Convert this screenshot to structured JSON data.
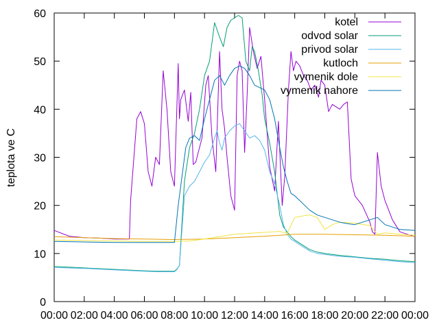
{
  "chart_data": {
    "type": "line",
    "title": "",
    "xlabel": "",
    "ylabel": "teplota ve C",
    "xlim": [
      "00:00",
      "24:00"
    ],
    "ylim": [
      0,
      60
    ],
    "yticks": [
      0,
      10,
      20,
      30,
      40,
      50,
      60
    ],
    "xtick_labels": [
      "00:00",
      "02:00",
      "04:00",
      "06:00",
      "08:00",
      "10:00",
      "12:00",
      "14:00",
      "16:00",
      "18:00",
      "20:00",
      "22:00",
      "00:00"
    ],
    "grid": false,
    "legend_position": "top-right",
    "series": [
      {
        "name": "kotel",
        "color": "#9400d3",
        "x": [
          "00:00",
          "01:00",
          "02:00",
          "03:00",
          "04:00",
          "05:00",
          "05:05",
          "05:30",
          "05:45",
          "06:00",
          "06:15",
          "06:30",
          "06:45",
          "07:00",
          "07:15",
          "07:30",
          "07:45",
          "08:00",
          "08:15",
          "08:20",
          "08:25",
          "08:40",
          "08:55",
          "09:05",
          "09:15",
          "09:25",
          "09:35",
          "09:50",
          "10:05",
          "10:15",
          "10:30",
          "10:45",
          "11:00",
          "11:10",
          "11:20",
          "11:30",
          "11:45",
          "12:00",
          "12:10",
          "12:20",
          "12:30",
          "12:40",
          "12:50",
          "13:00",
          "13:15",
          "13:30",
          "13:45",
          "14:00",
          "14:20",
          "14:40",
          "14:55",
          "15:10",
          "15:20",
          "15:35",
          "15:45",
          "15:55",
          "16:05",
          "16:20",
          "16:35",
          "16:50",
          "17:05",
          "17:20",
          "17:35",
          "17:45",
          "18:00",
          "18:15",
          "18:30",
          "18:45",
          "19:00",
          "19:15",
          "19:30",
          "19:45",
          "20:00",
          "20:30",
          "21:00",
          "21:10",
          "21:20",
          "21:30",
          "21:45",
          "22:00",
          "22:30",
          "23:00",
          "23:30",
          "24:00"
        ],
        "values": [
          14.8,
          13.6,
          13.3,
          13.2,
          13.0,
          13.0,
          21.0,
          38.0,
          39.5,
          37.0,
          27.0,
          24.0,
          30.0,
          28.5,
          48.0,
          40.0,
          27.0,
          24.0,
          49.5,
          38.0,
          42.0,
          44.0,
          37.5,
          43.5,
          28.5,
          29.0,
          31.0,
          34.0,
          45.0,
          47.0,
          34.0,
          27.0,
          52.0,
          40.0,
          36.0,
          30.0,
          22.0,
          19.0,
          47.0,
          50.0,
          48.0,
          31.0,
          43.0,
          57.0,
          52.0,
          48.5,
          51.0,
          42.0,
          28.0,
          23.0,
          37.5,
          20.0,
          26.0,
          44.0,
          52.0,
          48.0,
          50.0,
          49.0,
          47.0,
          46.0,
          44.0,
          45.0,
          42.5,
          46.0,
          45.0,
          39.5,
          41.0,
          40.5,
          40.0,
          41.0,
          41.5,
          25.5,
          22.0,
          20.0,
          16.5,
          14.5,
          14.0,
          31.0,
          24.0,
          21.0,
          17.0,
          14.5,
          14.0,
          13.5
        ]
      },
      {
        "name": "odvod solar",
        "color": "#009e73",
        "x": [
          "00:00",
          "02:00",
          "04:00",
          "06:00",
          "07:00",
          "08:00",
          "08:10",
          "08:20",
          "08:40",
          "09:00",
          "09:20",
          "09:40",
          "10:00",
          "10:20",
          "10:40",
          "11:00",
          "11:15",
          "11:30",
          "11:45",
          "12:00",
          "12:15",
          "12:30",
          "12:45",
          "13:00",
          "13:10",
          "13:20",
          "13:35",
          "13:50",
          "14:00",
          "14:20",
          "14:40",
          "15:00",
          "15:15",
          "15:30",
          "15:45",
          "16:00",
          "16:30",
          "17:00",
          "17:30",
          "18:00",
          "18:30",
          "19:00",
          "20:00",
          "21:00",
          "22:00",
          "23:00",
          "24:00"
        ],
        "values": [
          7.3,
          7.0,
          6.7,
          6.4,
          6.3,
          6.3,
          6.8,
          7.5,
          25.0,
          32.0,
          35.0,
          40.0,
          47.0,
          50.0,
          58.0,
          55.0,
          53.0,
          57.0,
          58.5,
          59.0,
          59.5,
          59.0,
          50.0,
          48.0,
          53.0,
          52.0,
          48.0,
          43.0,
          38.0,
          33.0,
          27.0,
          18.0,
          15.5,
          14.5,
          13.5,
          12.8,
          11.8,
          10.8,
          10.3,
          10.0,
          9.8,
          9.6,
          9.3,
          9.0,
          8.8,
          8.5,
          8.3
        ]
      },
      {
        "name": "privod solar",
        "color": "#56b4e9",
        "x": [
          "00:00",
          "02:00",
          "04:00",
          "06:00",
          "07:00",
          "08:00",
          "08:10",
          "08:20",
          "08:40",
          "09:00",
          "09:20",
          "09:40",
          "10:00",
          "10:20",
          "10:40",
          "10:50",
          "11:00",
          "11:10",
          "11:20",
          "11:40",
          "12:00",
          "12:20",
          "12:40",
          "13:00",
          "13:20",
          "13:40",
          "14:00",
          "14:20",
          "14:40",
          "15:00",
          "15:15",
          "15:30",
          "15:45",
          "16:00",
          "16:30",
          "17:00",
          "17:30",
          "18:00",
          "18:30",
          "19:00",
          "20:00",
          "21:00",
          "22:00",
          "23:00",
          "24:00"
        ],
        "values": [
          7.1,
          6.9,
          6.6,
          6.3,
          6.2,
          6.2,
          6.7,
          7.5,
          22.0,
          24.0,
          25.0,
          27.0,
          29.0,
          30.5,
          34.0,
          35.5,
          33.0,
          31.5,
          34.0,
          35.5,
          36.5,
          37.0,
          35.5,
          34.0,
          34.5,
          33.5,
          31.5,
          27.0,
          24.5,
          20.0,
          16.0,
          14.0,
          13.0,
          12.5,
          11.5,
          10.5,
          10.0,
          9.8,
          9.6,
          9.4,
          9.2,
          8.9,
          8.6,
          8.3,
          8.1
        ]
      },
      {
        "name": "kutloch",
        "color": "#e69f00",
        "x": [
          "00:00",
          "02:00",
          "04:00",
          "06:00",
          "08:00",
          "10:00",
          "12:00",
          "14:00",
          "15:00",
          "16:00",
          "18:00",
          "20:00",
          "22:00",
          "24:00"
        ],
        "values": [
          13.5,
          13.3,
          13.1,
          13.0,
          12.9,
          13.0,
          13.3,
          13.6,
          13.8,
          14.0,
          14.0,
          13.9,
          13.8,
          13.6
        ]
      },
      {
        "name": "vymenik dole",
        "color": "#f0e442",
        "x": [
          "00:00",
          "02:00",
          "04:00",
          "06:00",
          "08:00",
          "09:00",
          "10:00",
          "11:00",
          "12:00",
          "13:00",
          "14:00",
          "15:00",
          "15:30",
          "16:00",
          "16:30",
          "17:00",
          "17:30",
          "18:00",
          "18:30",
          "19:00",
          "20:00",
          "21:00",
          "21:30",
          "22:00",
          "23:00",
          "24:00"
        ],
        "values": [
          12.8,
          12.7,
          12.6,
          12.5,
          12.5,
          12.6,
          13.0,
          13.5,
          14.0,
          14.2,
          14.4,
          14.6,
          14.2,
          17.5,
          17.8,
          18.0,
          17.5,
          15.0,
          16.0,
          16.5,
          16.3,
          15.8,
          14.0,
          14.3,
          14.0,
          13.8
        ]
      },
      {
        "name": "vymenik nahore",
        "color": "#0072b2",
        "x": [
          "00:00",
          "02:00",
          "04:00",
          "06:00",
          "08:00",
          "08:15",
          "08:30",
          "08:45",
          "09:00",
          "09:20",
          "09:40",
          "10:00",
          "10:20",
          "10:40",
          "11:00",
          "11:20",
          "11:40",
          "12:00",
          "12:20",
          "12:40",
          "13:00",
          "13:20",
          "13:40",
          "14:00",
          "14:20",
          "14:40",
          "15:00",
          "15:15",
          "15:30",
          "15:45",
          "16:00",
          "16:30",
          "17:00",
          "17:30",
          "18:00",
          "18:30",
          "19:00",
          "19:30",
          "20:00",
          "20:30",
          "21:00",
          "21:30",
          "22:00",
          "23:00",
          "24:00"
        ],
        "values": [
          12.5,
          12.4,
          12.3,
          12.3,
          12.3,
          20.0,
          26.0,
          32.0,
          34.0,
          34.5,
          33.5,
          38.0,
          42.0,
          46.0,
          47.0,
          45.0,
          47.0,
          48.5,
          49.0,
          48.5,
          47.0,
          45.0,
          44.5,
          44.0,
          42.0,
          38.0,
          32.0,
          28.0,
          25.0,
          22.5,
          22.0,
          20.5,
          19.0,
          18.0,
          17.5,
          17.0,
          16.5,
          16.2,
          16.0,
          16.5,
          17.0,
          17.5,
          16.0,
          15.0,
          14.8
        ]
      }
    ]
  }
}
